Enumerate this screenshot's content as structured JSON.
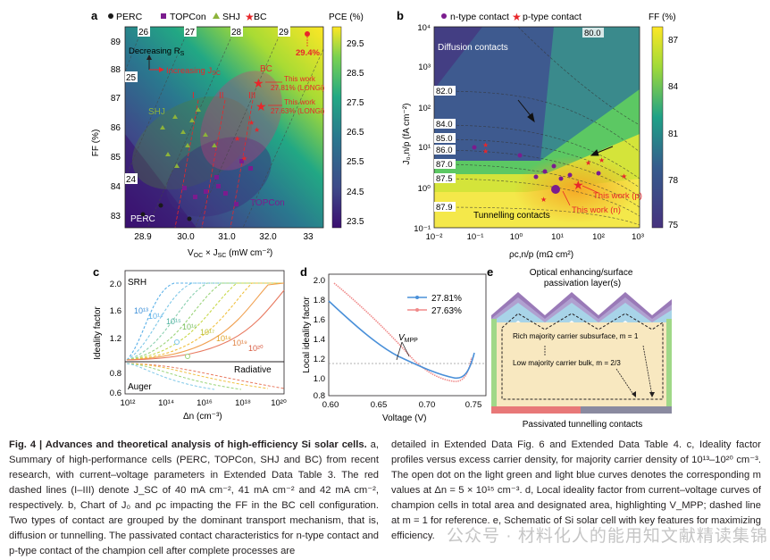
{
  "figure": {
    "panel_letters": {
      "a": "a",
      "b": "b",
      "c": "c",
      "d": "d",
      "e": "e"
    }
  },
  "panel_a": {
    "legend": [
      "PERC",
      "TOPCon",
      "SHJ",
      "BC"
    ],
    "colorbar_title": "PCE (%)",
    "colorbar_ticks": [
      "29.5",
      "28.5",
      "27.5",
      "26.5",
      "25.5",
      "24.5",
      "23.5"
    ],
    "top_ticks": [
      "26",
      "27",
      "28",
      "29"
    ],
    "side_contours": [
      "25",
      "24"
    ],
    "xlabel": "V",
    "xlabel_sub": "OC",
    "xlabel_rest": " × J",
    "xlabel_sub2": "SC",
    "xlabel_unit": " (mW cm⁻²)",
    "xticks": [
      "28.9",
      "30.0",
      "31.0",
      "32.0",
      "33"
    ],
    "ylabel": "FF (%)",
    "yticks": [
      "89",
      "88",
      "87",
      "86",
      "85",
      "84",
      "83"
    ],
    "arrow_label_1": "Decreasing R",
    "arrow_label_1_sub": "S",
    "arrow_label_2": "Increasing J",
    "arrow_label_2_sub": "SC",
    "region_labels": {
      "shj": "SHJ",
      "perc": "PERC",
      "topcon": "TOPCon",
      "bc": "BC"
    },
    "roman": [
      "I",
      "II",
      "III"
    ],
    "record_value": "29.4%",
    "this_work_1": [
      "This work",
      "27.81% (LONGi)"
    ],
    "this_work_2": [
      "This work",
      "27.63% (LONGi)"
    ]
  },
  "panel_b": {
    "legend": [
      "n-type contact",
      "p-type contact"
    ],
    "colorbar_title": "FF (%)",
    "colorbar_ticks": [
      "87",
      "84",
      "81",
      "78",
      "75"
    ],
    "ylabel": "J₀,n/p (fA cm⁻²)",
    "xlabel": "ρc,n/p (mΩ cm²)",
    "xticks": [
      "10⁻²",
      "10⁻¹",
      "10⁰",
      "10¹",
      "10²",
      "10³"
    ],
    "yticks": [
      "10⁴",
      "10³",
      "10²",
      "10¹",
      "10⁰",
      "10⁻¹"
    ],
    "contours": [
      "80.0",
      "82.0",
      "84.0",
      "85.0",
      "86.0",
      "87.0",
      "87.5",
      "87.9"
    ],
    "diffusion_label": "Diffusion contacts",
    "tunnelling_label": "Tunnelling contacts",
    "this_work_p": "This work (p)",
    "this_work_n": "This work (n)"
  },
  "panel_c": {
    "ylabel": "Ideality factor",
    "xlabel": "Δn (cm⁻³)",
    "xticks": [
      "10¹²",
      "10¹⁴",
      "10¹⁶",
      "10¹⁸",
      "10²⁰"
    ],
    "yticks": [
      "2.0",
      "1.6",
      "1.2",
      "0.8",
      "0.6"
    ],
    "srh": "SRH",
    "radiative": "Radiative",
    "auger": "Auger",
    "curve_labels": [
      "10¹³",
      "10¹⁴",
      "10¹⁵",
      "10¹⁶",
      "10¹⁷",
      "10¹⁸",
      "10¹⁹",
      "10²⁰"
    ]
  },
  "panel_d": {
    "ylabel": "Local ideality factor",
    "xlabel": "Voltage (V)",
    "xticks": [
      "0.60",
      "0.65",
      "0.70",
      "0.75"
    ],
    "yticks": [
      "2.0",
      "1.8",
      "1.6",
      "1.4",
      "1.2",
      "1.0",
      "0.8"
    ],
    "legend": [
      "27.81%",
      "27.63%"
    ],
    "vmpp_label": "V",
    "vmpp_sub": "MPP"
  },
  "panel_e": {
    "top_label": [
      "Optical enhancing/surface",
      "passivation layer(s)"
    ],
    "rich_label": "Rich majority carrier subsurface, m = 1",
    "low_label": "Low majority carrier bulk, m = 2/3",
    "bottom_label": "Passivated tunnelling contacts"
  },
  "caption": {
    "head": "Fig. 4 | Advances and theoretical analysis of high-efficiency Si solar cells.",
    "left_body": "a, Summary of high-performance cells (PERC, TOPCon, SHJ and BC) from recent research, with current–voltage parameters in Extended Data Table 3. The red dashed lines (I–III) denote J_SC of 40 mA cm⁻², 41 mA cm⁻² and 42 mA cm⁻², respectively. b, Chart of J₀ and ρc impacting the FF in the BC cell configuration. Two types of contact are grouped by the dominant transport mechanism, that is, diffusion or tunnelling. The passivated contact characteristics for n-type contact and p-type contact of the champion cell after complete processes are",
    "right_body": "detailed in Extended Data Fig. 6 and Extended Data Table 4. c, Ideality factor profiles versus excess carrier density, for majority carrier density of 10¹³–10²⁰ cm⁻³. The open dot on the light green and light blue curves denotes the corresponding m values at Δn = 5 × 10¹⁵ cm⁻³. d, Local ideality factor from current–voltage curves of champion cells in total area and designated area, highlighting V_MPP; dashed line at m = 1 for reference. e, Schematic of Si solar cell with key features for maximizing efficiency."
  },
  "watermark": "公众号 · 材料化人的能用知文献精读集锦",
  "colors": {
    "perc": "#1a1a1a",
    "topcon": "#7b1c8e",
    "shj": "#8db33a",
    "bc": "#e8262a",
    "curve_blue": "#4a90d9",
    "curve_pink": "#f08a8a"
  }
}
